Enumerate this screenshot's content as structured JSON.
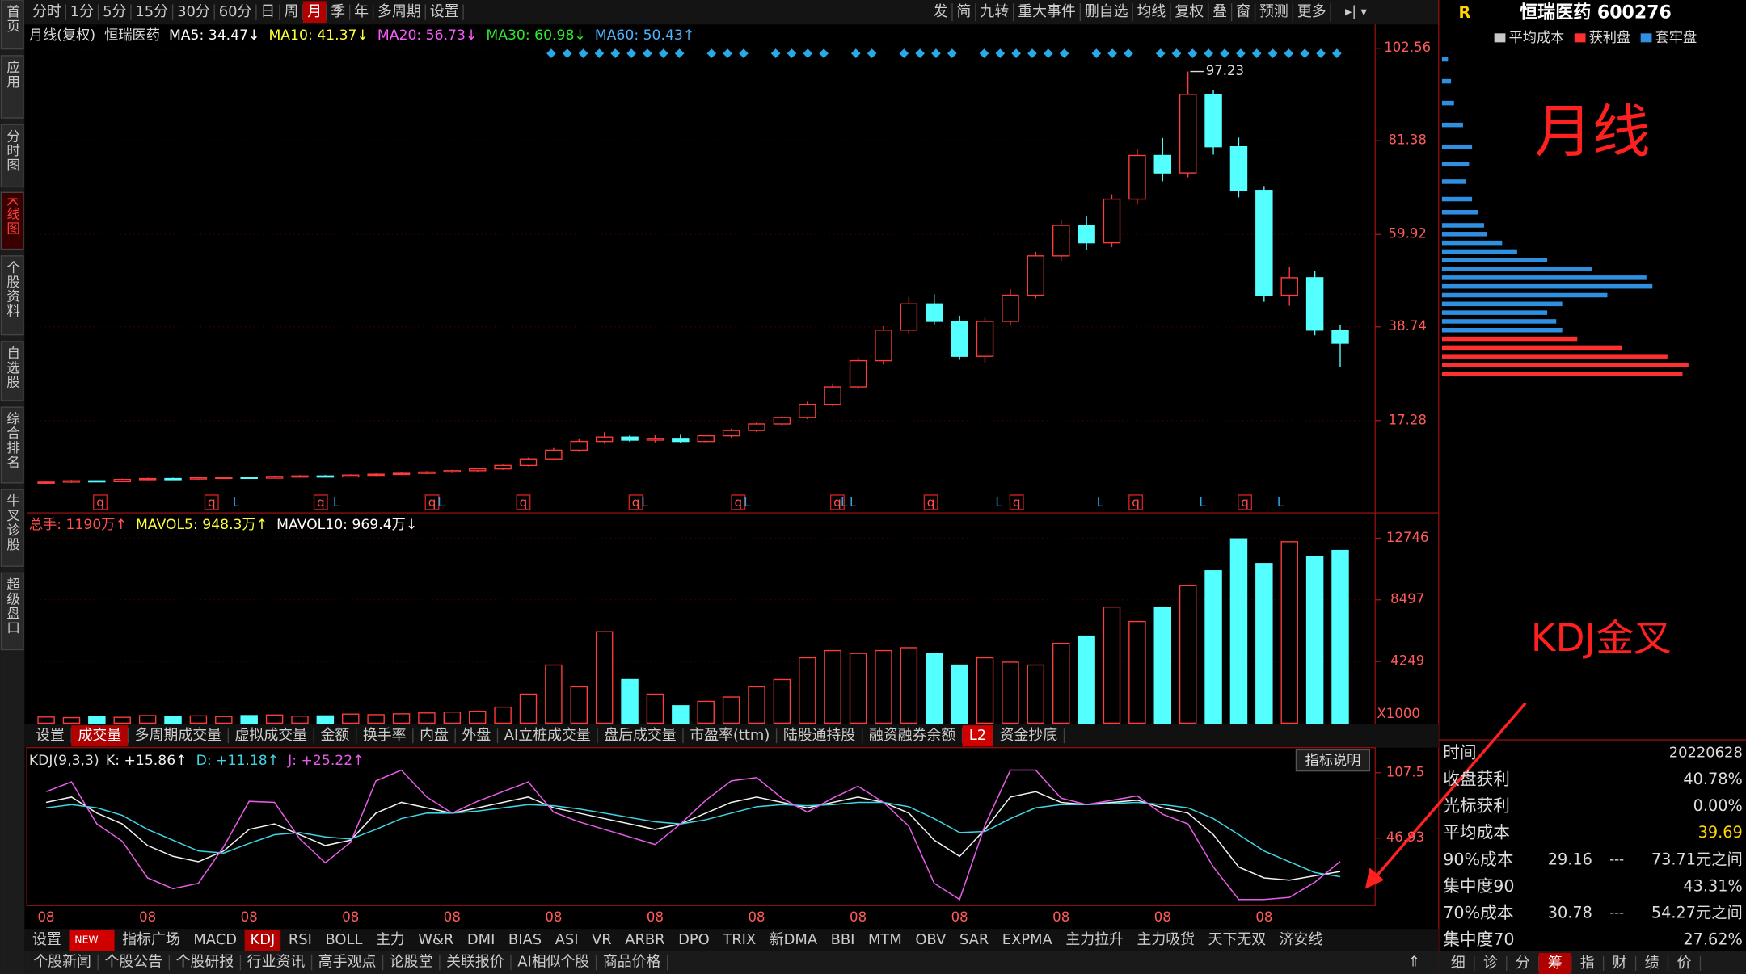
{
  "sidebar": [
    "首页",
    "应用",
    "分时图",
    "K线图",
    "个股资料",
    "自选股",
    "综合排名",
    "牛叉诊股",
    "超级盘口"
  ],
  "toolbar": {
    "periods": [
      "分时",
      "1分",
      "5分",
      "15分",
      "30分",
      "60分",
      "日",
      "周",
      "月",
      "季",
      "年",
      "多周期",
      "设置"
    ],
    "tools": [
      "发",
      "简",
      "九转",
      "重大事件",
      "删自选",
      "均线",
      "复权",
      "叠",
      "窗",
      "预测",
      "更多"
    ]
  },
  "stock": {
    "code_prefix": "R",
    "name": "恒瑞医药 600276"
  },
  "annotations": [
    "月线",
    "KDJ金叉"
  ],
  "chart_data": [
    {
      "type": "candlestick",
      "title": "月线(复权)",
      "subtitle": "恒瑞医药",
      "ma_legend": [
        {
          "label": "MA5: 34.47↓",
          "color": "#ffffff"
        },
        {
          "label": "MA10: 41.37↓",
          "color": "#ffff3c"
        },
        {
          "label": "MA20: 56.73↓",
          "color": "#ff5cff"
        },
        {
          "label": "MA30: 60.98↓",
          "color": "#2ee82e"
        },
        {
          "label": "MA60: 50.43↑",
          "color": "#4cb4ff"
        }
      ],
      "up_color": "#ff3c3c",
      "down_color": "#54ffff",
      "open": [
        3.0,
        3.2,
        3.5,
        3.3,
        3.8,
        4.0,
        3.9,
        4.2,
        4.3,
        4.1,
        4.5,
        4.6,
        4.4,
        4.8,
        5.0,
        5.2,
        5.5,
        5.8,
        6.2,
        7.0,
        8.5,
        10.5,
        12.5,
        13.5,
        12.8,
        13.2,
        12.5,
        13.8,
        15.0,
        16.5,
        18.0,
        21.0,
        25.0,
        31.0,
        38.0,
        44.0,
        40.0,
        32.0,
        40.0,
        46.0,
        55.0,
        62.0,
        58.0,
        68.0,
        78.0,
        74.0,
        92.0,
        80.0,
        70.0,
        46.0,
        50.0,
        38.0
      ],
      "high": [
        3.4,
        3.7,
        3.6,
        4.0,
        4.2,
        4.2,
        4.4,
        4.5,
        4.4,
        4.7,
        4.8,
        4.8,
        5.0,
        5.2,
        5.4,
        5.7,
        6.0,
        6.4,
        7.2,
        8.8,
        11.0,
        13.2,
        14.6,
        14.0,
        13.9,
        14.2,
        14.1,
        15.4,
        16.9,
        18.4,
        21.6,
        25.8,
        31.8,
        38.9,
        45.6,
        46.2,
        41.3,
        40.8,
        47.4,
        55.9,
        63.2,
        64.0,
        69.1,
        79.4,
        82.0,
        97.23,
        93.0,
        82.1,
        71.0,
        52.4,
        51.6,
        39.2
      ],
      "low": [
        2.8,
        3.0,
        3.2,
        3.2,
        3.6,
        3.8,
        3.7,
        4.0,
        4.0,
        4.0,
        4.3,
        4.3,
        4.3,
        4.6,
        4.8,
        5.0,
        5.3,
        5.6,
        6.0,
        6.8,
        8.2,
        10.1,
        12.0,
        12.4,
        12.3,
        12.1,
        12.2,
        13.4,
        14.6,
        16.1,
        17.6,
        20.5,
        24.4,
        30.1,
        37.2,
        39.1,
        31.2,
        30.5,
        39.0,
        45.3,
        53.8,
        56.4,
        57.0,
        66.8,
        72.1,
        73.0,
        78.2,
        68.4,
        44.5,
        43.6,
        36.8,
        29.6
      ],
      "close": [
        3.2,
        3.5,
        3.3,
        3.8,
        4.0,
        3.9,
        4.2,
        4.3,
        4.1,
        4.5,
        4.6,
        4.4,
        4.8,
        5.0,
        5.2,
        5.5,
        5.8,
        6.2,
        7.0,
        8.5,
        10.5,
        12.5,
        13.5,
        12.8,
        13.2,
        12.5,
        13.8,
        15.0,
        16.5,
        18.0,
        21.0,
        25.0,
        31.0,
        38.0,
        44.0,
        40.0,
        32.0,
        40.0,
        46.0,
        55.0,
        62.0,
        58.0,
        68.0,
        78.0,
        74.0,
        92.0,
        80.0,
        70.0,
        46.0,
        50.0,
        38.0,
        35.0
      ],
      "ylim": [
        -3.6,
        108
      ],
      "yticks": [
        17.28,
        38.74,
        59.92,
        81.38,
        102.56
      ],
      "peak_label": "97.23",
      "event_markers": [
        "q",
        "q",
        "L",
        "q",
        "L",
        "q",
        "L",
        "q",
        "q",
        "L",
        "q",
        "L",
        "q",
        "L",
        "L",
        "q",
        "L",
        "q",
        "L",
        "q",
        "L",
        "q",
        "L"
      ]
    },
    {
      "type": "bar",
      "title": "总手: 1190万↑",
      "legend": [
        {
          "label": "MAVOL5: 948.3万↑",
          "color": "#ffff3c"
        },
        {
          "label": "MAVOL10: 969.4万↓",
          "color": "#ffffff"
        }
      ],
      "values": [
        420,
        380,
        450,
        400,
        520,
        480,
        500,
        450,
        520,
        560,
        480,
        500,
        620,
        580,
        640,
        700,
        760,
        820,
        1100,
        2000,
        4000,
        2500,
        6300,
        3000,
        2000,
        1200,
        1500,
        1800,
        2500,
        3000,
        4500,
        5000,
        4800,
        5000,
        5200,
        4800,
        4000,
        4500,
        4200,
        4000,
        5500,
        6000,
        8000,
        7000,
        8000,
        9500,
        10500,
        12700,
        11000,
        12500,
        11500,
        11900
      ],
      "ylim": [
        0,
        14416
      ],
      "yticks": [
        4249,
        8497,
        12746
      ],
      "unit_label": "X1000"
    },
    {
      "type": "line",
      "title": "KDJ(9,3,3)",
      "button": "指标说明",
      "categories": [
        "08",
        null,
        null,
        null,
        "08",
        null,
        null,
        null,
        "08",
        null,
        null,
        null,
        "08",
        null,
        null,
        null,
        "08",
        null,
        null,
        null,
        "08",
        null,
        null,
        null,
        "08",
        null,
        null,
        null,
        "08",
        null,
        null,
        null,
        "08",
        null,
        null,
        null,
        "08",
        null,
        null,
        null,
        "08",
        null,
        null,
        null,
        "08",
        null,
        null,
        null,
        "08",
        null,
        null,
        null
      ],
      "series": [
        {
          "name": "K: +15.86↑",
          "color": "#f2f2f2",
          "values": [
            80,
            85,
            70,
            60,
            40,
            30,
            25,
            35,
            55,
            60,
            50,
            40,
            45,
            70,
            80,
            75,
            70,
            75,
            80,
            85,
            75,
            70,
            65,
            60,
            55,
            60,
            70,
            80,
            85,
            80,
            75,
            80,
            85,
            80,
            70,
            45,
            30,
            55,
            85,
            90,
            80,
            78,
            80,
            82,
            75,
            70,
            50,
            20,
            10,
            8,
            12,
            15.86
          ]
        },
        {
          "name": "D: +11.18↑",
          "color": "#3fd4e6",
          "values": [
            75,
            78,
            75,
            68,
            55,
            45,
            35,
            33,
            42,
            50,
            52,
            48,
            46,
            55,
            65,
            70,
            70,
            72,
            75,
            78,
            77,
            74,
            70,
            66,
            62,
            60,
            64,
            70,
            76,
            78,
            77,
            78,
            80,
            80,
            76,
            65,
            52,
            53,
            65,
            75,
            78,
            78,
            79,
            80,
            78,
            75,
            65,
            50,
            35,
            25,
            15,
            11.18
          ]
        },
        {
          "name": "J: +25.22↑",
          "color": "#e85ce8",
          "values": [
            90,
            99,
            60,
            44,
            10,
            0,
            5,
            39,
            81,
            80,
            46,
            24,
            43,
            100,
            110,
            85,
            70,
            81,
            90,
            99,
            71,
            62,
            55,
            48,
            41,
            60,
            82,
            100,
            103,
            84,
            71,
            84,
            95,
            80,
            58,
            5,
            -10,
            59,
            110,
            110,
            84,
            78,
            82,
            86,
            69,
            60,
            20,
            -10,
            -10,
            -8,
            6,
            25.22
          ]
        }
      ],
      "ylim": [
        -13.6,
        127.7
      ],
      "yticks": [
        46.93,
        107.5
      ]
    },
    {
      "type": "chip-distribution",
      "legend_average": {
        "name": "平均成本",
        "color": "#c8c8c8"
      },
      "series": [
        {
          "name": "获利盘",
          "color": "#ff3030",
          "prices": [
            28,
            30,
            32,
            34,
            36
          ],
          "values": [
            80,
            82,
            75,
            60,
            45
          ]
        },
        {
          "name": "套牢盘",
          "color": "#2f8fe0",
          "prices": [
            38,
            40,
            42,
            44,
            46,
            48,
            50,
            52,
            54,
            56,
            58,
            60,
            62,
            65,
            68,
            72,
            76,
            80,
            85,
            90,
            95,
            100
          ],
          "values": [
            40,
            38,
            35,
            40,
            55,
            70,
            68,
            50,
            35,
            25,
            20,
            15,
            14,
            12,
            10,
            8,
            9,
            10,
            7,
            4,
            3,
            2
          ]
        }
      ],
      "xlim": [
        0,
        100
      ]
    }
  ],
  "info": {
    "rows": [
      [
        "时间",
        "20220628"
      ],
      [
        "收盘获利",
        "40.78%"
      ],
      [
        "光标获利",
        "0.00%"
      ],
      [
        "平均成本",
        "39.69"
      ],
      [
        "90%成本",
        "29.16",
        "---",
        "73.71元之间"
      ],
      [
        "集中度90",
        "43.31%"
      ],
      [
        "70%成本",
        "30.78",
        "---",
        "54.27元之间"
      ],
      [
        "集中度70",
        "27.62%"
      ]
    ]
  },
  "volume_tabs": [
    "设置",
    "成交量",
    "多周期成交量",
    "虚拟成交量",
    "金额",
    "换手率",
    "内盘",
    "外盘",
    "AI立桩成交量",
    "盘后成交量",
    "市盈率(ttm)",
    "陆股通持股",
    "融资融券余额",
    "L2",
    "资金抄底"
  ],
  "indicator_tabs": [
    "设置",
    "NEW",
    "指标广场",
    "MACD",
    "KDJ",
    "RSI",
    "BOLL",
    "主力",
    "W&R",
    "DMI",
    "BIAS",
    "ASI",
    "VR",
    "ARBR",
    "DPO",
    "TRIX",
    "新DMA",
    "BBI",
    "MTM",
    "OBV",
    "SAR",
    "EXPMA",
    "主力拉升",
    "主力吸货",
    "天下无双",
    "济安线"
  ],
  "news_tabs": [
    "个股新闻",
    "个股公告",
    "个股研报",
    "行业资讯",
    "高手观点",
    "论股堂",
    "关联报价",
    "AI相似个股",
    "商品价格"
  ],
  "right_tabs": [
    "细",
    "诊",
    "分",
    "筹",
    "指",
    "财",
    "绩",
    "价"
  ]
}
